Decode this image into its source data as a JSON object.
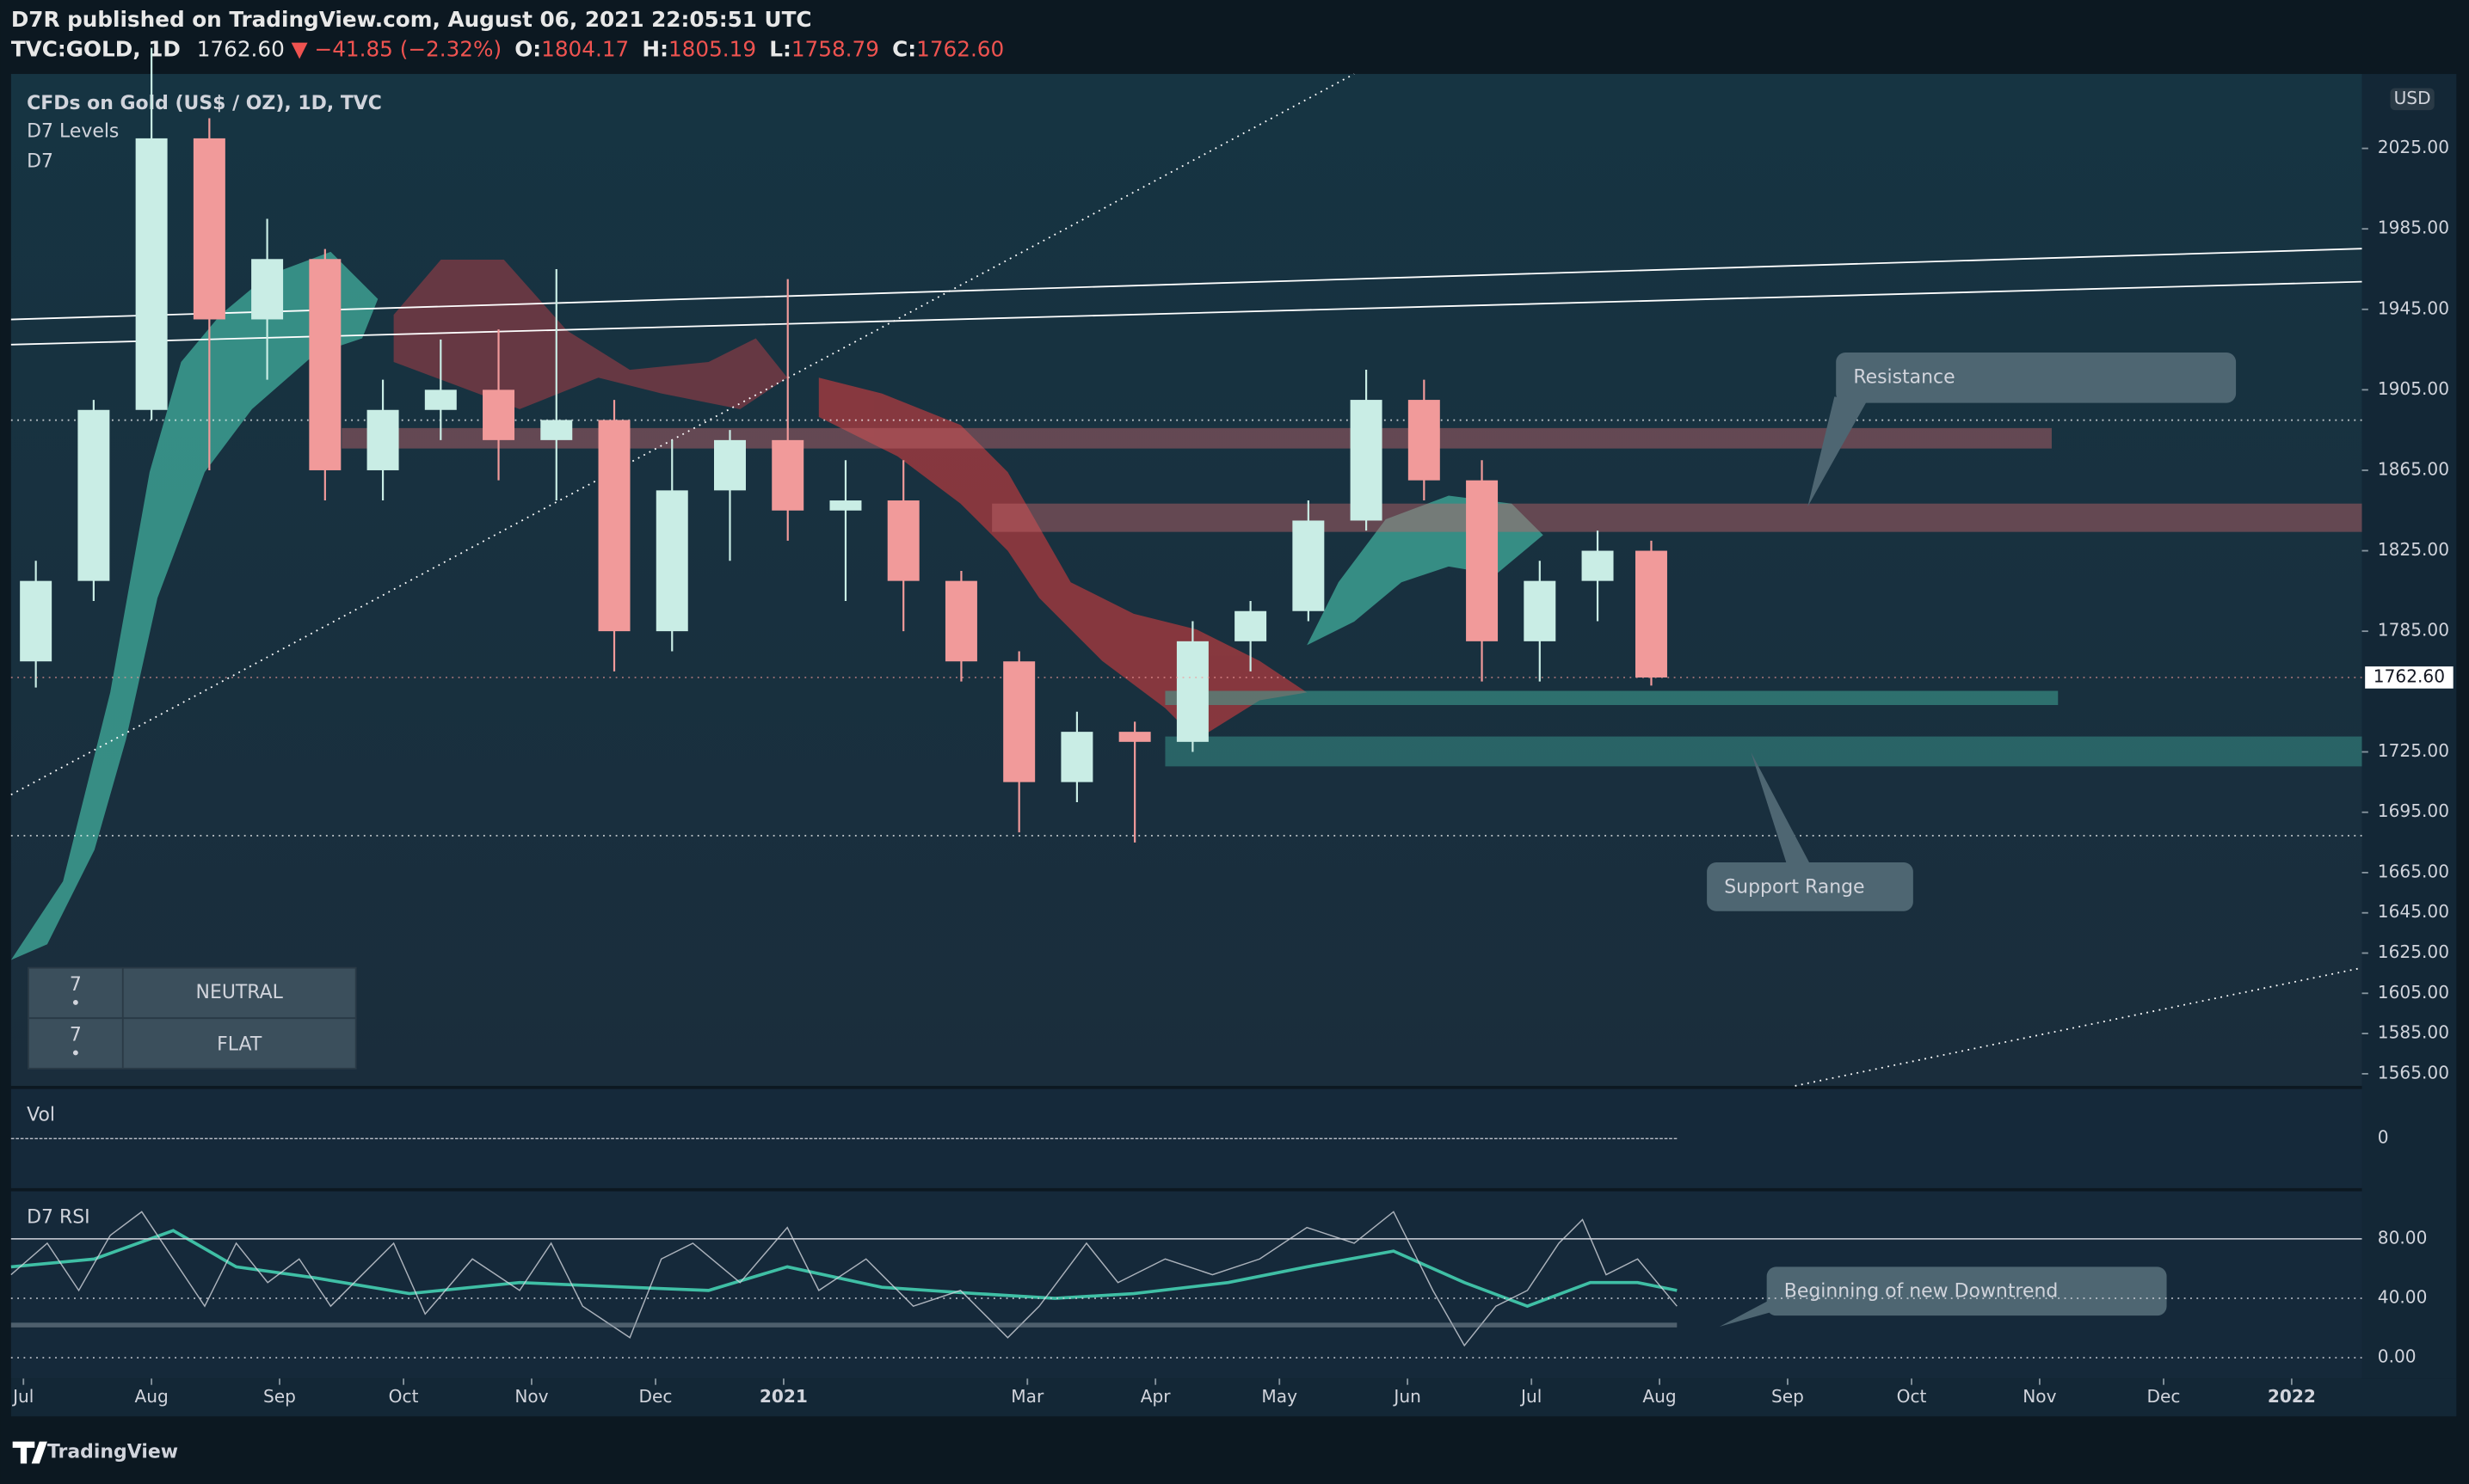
{
  "header": {
    "publisher": "D7R published on TradingView.com, August 06, 2021 22:05:51 UTC",
    "symbol": "TVC:GOLD, 1D",
    "last": "1762.60",
    "change": "▼ −41.85 (−2.32%)",
    "open_label": "O:",
    "open": "1804.17",
    "high_label": "H:",
    "high": "1805.19",
    "low_label": "L:",
    "low": "1758.79",
    "close_label": "C:",
    "close": "1762.60"
  },
  "legend": [
    "CFDs on Gold (US$ / OZ), 1D, TVC",
    "D7 Levels",
    "D7"
  ],
  "status_table": [
    [
      "7",
      "NEUTRAL"
    ],
    [
      "7",
      "FLAT"
    ]
  ],
  "annotations": [
    "Resistance",
    "Support Range",
    "Beginning of new Downtrend"
  ],
  "currency": "USD",
  "last_price_badge": "1762.60",
  "volume_pane": {
    "title": "Vol",
    "ylim": [
      -1,
      1
    ],
    "yticks": [
      0
    ]
  },
  "rsi_pane": {
    "title": "D7 RSI",
    "ylim": [
      -14,
      112
    ],
    "yticks": [
      {
        "value": 80,
        "label": "80.00"
      },
      {
        "value": 40,
        "label": "40.00"
      },
      {
        "value": 0,
        "label": "0.00"
      }
    ]
  },
  "footer": "TradingView",
  "chart_data": {
    "type": "candlestick",
    "up_color": "#c9ede5",
    "down_color": "#f19a9a",
    "x": [
      3,
      17,
      31,
      45,
      59,
      73,
      87,
      101,
      115,
      129,
      143,
      157,
      171,
      185,
      199,
      213,
      227,
      241,
      255,
      269,
      283,
      297,
      311,
      325,
      339,
      353,
      367,
      381,
      394
    ],
    "open": [
      1770,
      1810,
      1895,
      2030,
      1940,
      1970,
      1865,
      1895,
      1905,
      1880,
      1890,
      1785,
      1855,
      1880,
      1845,
      1850,
      1810,
      1770,
      1710,
      1735,
      1730,
      1780,
      1795,
      1840,
      1900,
      1860,
      1780,
      1810,
      1825
    ],
    "high": [
      1820,
      1900,
      2075,
      2040,
      1990,
      1975,
      1910,
      1930,
      1935,
      1965,
      1900,
      1880,
      1885,
      1960,
      1870,
      1870,
      1815,
      1775,
      1745,
      1740,
      1790,
      1800,
      1850,
      1915,
      1910,
      1870,
      1820,
      1835,
      1830
    ],
    "low": [
      1757,
      1800,
      1890,
      1865,
      1910,
      1850,
      1850,
      1880,
      1860,
      1850,
      1765,
      1775,
      1820,
      1830,
      1800,
      1785,
      1760,
      1685,
      1700,
      1680,
      1725,
      1765,
      1790,
      1835,
      1850,
      1760,
      1760,
      1790,
      1758
    ],
    "close": [
      1810,
      1895,
      2030,
      1940,
      1970,
      1865,
      1895,
      1905,
      1880,
      1890,
      1785,
      1855,
      1880,
      1845,
      1850,
      1810,
      1770,
      1710,
      1735,
      1730,
      1780,
      1795,
      1840,
      1900,
      1860,
      1780,
      1810,
      1825,
      1762
    ],
    "xlim": [
      -3,
      566
    ],
    "ylim": [
      1559,
      2062
    ],
    "xticks": [
      {
        "value": 0,
        "label": "Jul"
      },
      {
        "value": 31,
        "label": "Aug"
      },
      {
        "value": 62,
        "label": "Sep"
      },
      {
        "value": 92,
        "label": "Oct"
      },
      {
        "value": 123,
        "label": "Nov"
      },
      {
        "value": 153,
        "label": "Dec"
      },
      {
        "value": 184,
        "label": "2021"
      },
      {
        "value": 243,
        "label": "Mar"
      },
      {
        "value": 274,
        "label": "Apr"
      },
      {
        "value": 304,
        "label": "May"
      },
      {
        "value": 335,
        "label": "Jun"
      },
      {
        "value": 365,
        "label": "Jul"
      },
      {
        "value": 396,
        "label": "Aug"
      },
      {
        "value": 427,
        "label": "Sep"
      },
      {
        "value": 457,
        "label": "Oct"
      },
      {
        "value": 488,
        "label": "Nov"
      },
      {
        "value": 518,
        "label": "Dec"
      },
      {
        "value": 549,
        "label": "2022"
      }
    ],
    "yticks": [
      {
        "value": 2025,
        "label": "2025.00"
      },
      {
        "value": 1985,
        "label": "1985.00"
      },
      {
        "value": 1945,
        "label": "1945.00"
      },
      {
        "value": 1905,
        "label": "1905.00"
      },
      {
        "value": 1865,
        "label": "1865.00"
      },
      {
        "value": 1825,
        "label": "1825.00"
      },
      {
        "value": 1785,
        "label": "1785.00"
      },
      {
        "value": 1725,
        "label": "1725.00"
      },
      {
        "value": 1695,
        "label": "1695.00"
      },
      {
        "value": 1665,
        "label": "1665.00"
      },
      {
        "value": 1645,
        "label": "1645.00"
      },
      {
        "value": 1625,
        "label": "1625.00"
      },
      {
        "value": 1605,
        "label": "1605.00"
      },
      {
        "value": 1585,
        "label": "1585.00"
      },
      {
        "value": 1565,
        "label": "1565.00"
      }
    ]
  }
}
